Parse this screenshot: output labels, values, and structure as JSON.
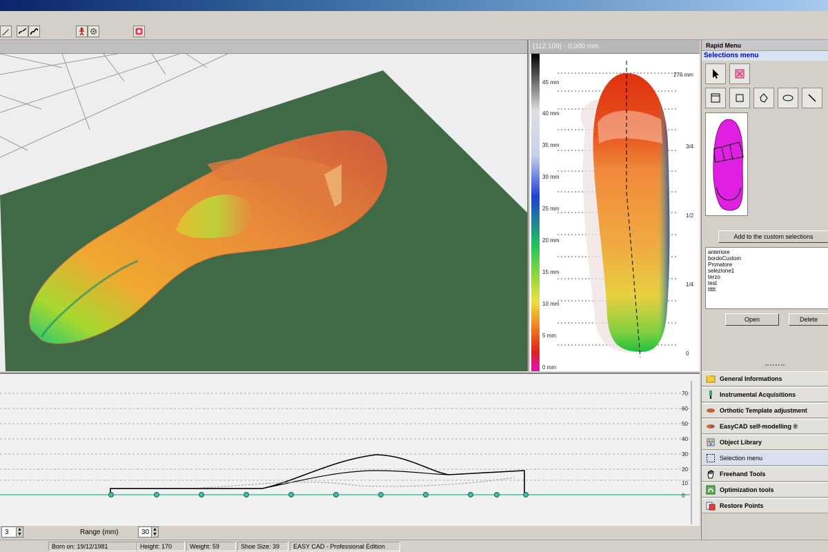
{
  "topview": {
    "header": "(112,109) - 0,000 mm",
    "scale_labels": [
      "45 mm",
      "40 mm",
      "35 mm",
      "30 mm",
      "25 mm",
      "20 mm",
      "15 mm",
      "10 mm",
      "5 mm",
      "0 mm"
    ],
    "length_label": "276 mm",
    "fraction_labels": [
      "3/4",
      "1/2",
      "1/4",
      "0"
    ]
  },
  "profile": {
    "y_labels": [
      "70",
      "60",
      "50",
      "40",
      "30",
      "20",
      "10",
      "0"
    ]
  },
  "controls": {
    "left_spin_value": "3",
    "range_label": "Range (mm)",
    "range_value": "30"
  },
  "status": {
    "born": "Born on: 19/12/1981",
    "height": "Height: 170",
    "weight": "Weight: 59",
    "shoe_size": "Shoe Size: 39",
    "edition": "EASY CAD - Professional Edition"
  },
  "panel": {
    "rapid_menu": "Rapid Menu",
    "selections_menu": "Selections menu",
    "add_button": "Add to the custom selections",
    "selections": [
      "anteriore",
      "bordoCustom",
      "Pronatore",
      "selezione1",
      "terzo",
      "test",
      "ttttt"
    ],
    "open_button": "Open",
    "delete_button": "Delete",
    "menu": [
      {
        "label": "General Informations",
        "icon": "folder-icon"
      },
      {
        "label": "Instrumental Acquisitions",
        "icon": "probe-icon"
      },
      {
        "label": "Orthotic Template adjustment",
        "icon": "insole-icon"
      },
      {
        "label": "EasyCAD self-modelling ®",
        "icon": "insole-edit-icon"
      },
      {
        "label": "Object Library",
        "icon": "library-icon"
      },
      {
        "label": "Selection menu",
        "icon": "selection-icon"
      },
      {
        "label": "Freehand Tools",
        "icon": "hand-icon"
      },
      {
        "label": "Optimization tools",
        "icon": "optimize-icon"
      },
      {
        "label": "Restore Points",
        "icon": "restore-icon"
      }
    ],
    "active_menu": "Selection menu"
  },
  "colors": {
    "ground": "#3f6a45",
    "accent_selection": "#e020e0",
    "heat_high": "#e03010",
    "heat_low": "#20c040"
  }
}
